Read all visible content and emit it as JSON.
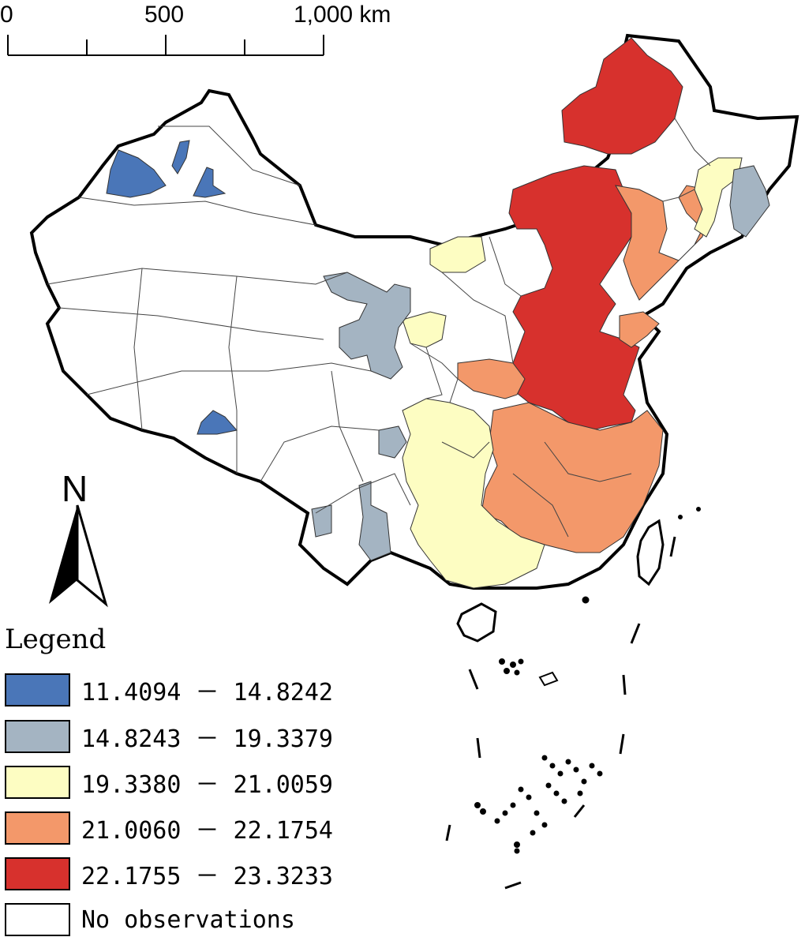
{
  "scale_bar": {
    "labels": [
      "0",
      "500",
      "1,000 km"
    ]
  },
  "north_arrow": {
    "letter": "N"
  },
  "legend": {
    "title": "Legend",
    "items": [
      {
        "label": "11.4094 － 14.8242",
        "color": "#4a76b8"
      },
      {
        "label": "14.8243 － 19.3379",
        "color": "#a4b4c2"
      },
      {
        "label": "19.3380 － 21.0059",
        "color": "#fdfdc2"
      },
      {
        "label": "21.0060 － 22.1754",
        "color": "#f3986a"
      },
      {
        "label": "22.1755 － 23.3233",
        "color": "#d7312d"
      },
      {
        "label": "No observations",
        "color": "#ffffff"
      }
    ]
  },
  "colors": {
    "class1": "#4a76b8",
    "class2": "#a4b4c2",
    "class3": "#fdfdc2",
    "class4": "#f3986a",
    "class5": "#d7312d",
    "none": "#ffffff",
    "border": "#000000"
  }
}
